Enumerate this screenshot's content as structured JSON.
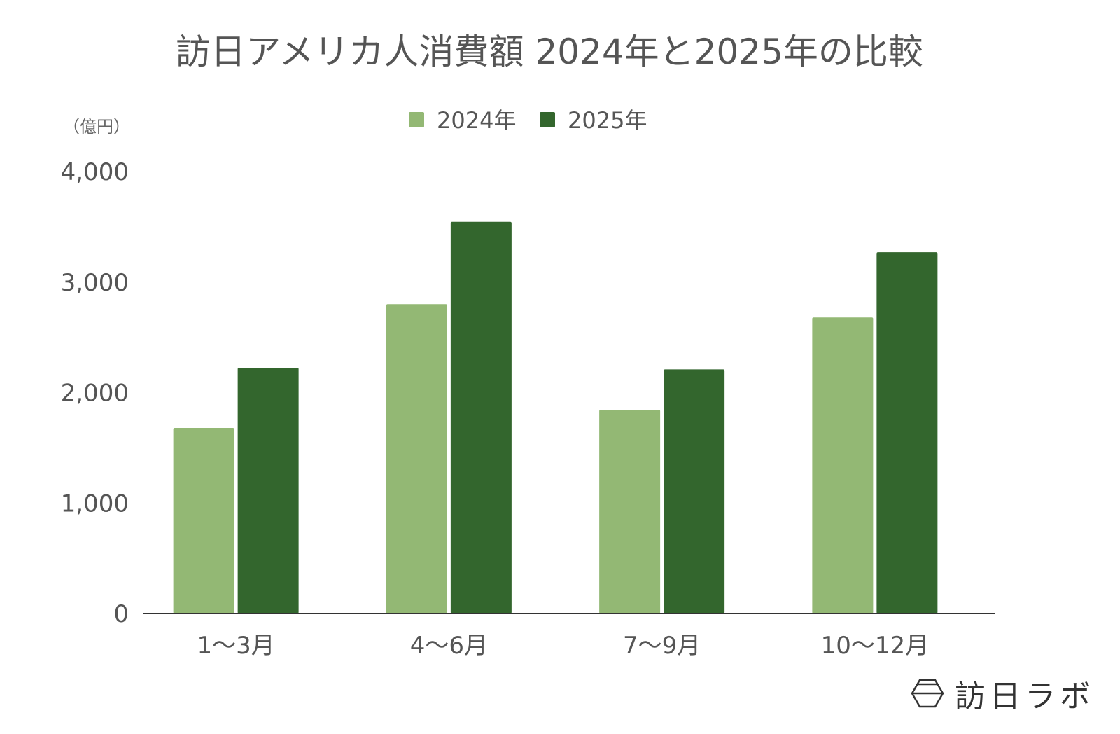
{
  "chart_data": {
    "type": "bar",
    "title": "訪日アメリカ人消費額 2024年と2025年の比較",
    "ylabel": "（億円）",
    "xlabel": "",
    "categories": [
      "1〜3月",
      "4〜6月",
      "7〜9月",
      "10〜12月"
    ],
    "series": [
      {
        "name": "2024年",
        "color": "#93b874",
        "values": [
          1680,
          2800,
          1845,
          2680
        ]
      },
      {
        "name": "2025年",
        "color": "#33662d",
        "values": [
          2225,
          3545,
          2210,
          3270
        ]
      }
    ],
    "ylim": [
      0,
      4000
    ],
    "yticks": [
      "0",
      "1,000",
      "2,000",
      "3,000",
      "4,000"
    ],
    "grid": false,
    "legend": "top-center"
  },
  "logo": {
    "text": "訪日ラボ"
  }
}
